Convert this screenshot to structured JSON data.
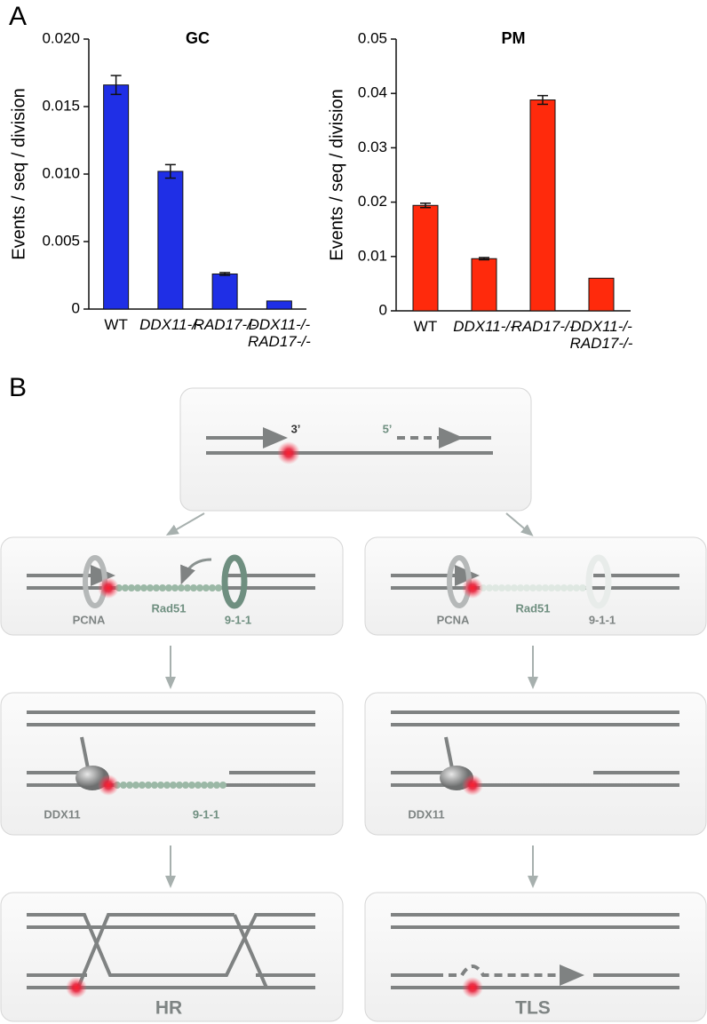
{
  "panel_labels": [
    "A",
    "B"
  ],
  "chart_data": [
    {
      "type": "bar",
      "title": "GC",
      "ylabel": "Events / seq / division",
      "categories": [
        "WT",
        "DDX11-/-",
        "RAD17-/-",
        "DDX11-/- RAD17-/-"
      ],
      "values": [
        0.0166,
        0.0102,
        0.0026,
        0.0006
      ],
      "errors": [
        0.0007,
        0.0005,
        0.0001,
        null
      ],
      "color": "#1f2fe6",
      "ylim": [
        0,
        0.02
      ],
      "yticks": [
        0,
        0.005,
        {
          "value": 0.01,
          "label": "0.010"
        },
        0.015,
        {
          "value": 0.02,
          "label": "0.020"
        }
      ]
    },
    {
      "type": "bar",
      "title": "PM",
      "ylabel": "Events / seq / division",
      "categories": [
        "WT",
        "DDX11-/-",
        "RAD17-/-",
        "DDX11-/- RAD17-/-"
      ],
      "values": [
        0.0194,
        0.0096,
        0.0388,
        0.006
      ],
      "errors": [
        0.0004,
        0.0002,
        0.0008,
        null
      ],
      "color": "#ff2a0c",
      "ylim": [
        0,
        0.05
      ],
      "yticks": [
        0,
        0.01,
        0.02,
        0.03,
        0.04,
        0.05
      ]
    }
  ],
  "diagram": {
    "top": {
      "label_3": "3’",
      "label_5": "5’"
    },
    "rad17_present": {
      "pcna": "PCNA",
      "rad51": "Rad51",
      "ring": "9-1-1"
    },
    "rad17_absent": {
      "pcna": "PCNA",
      "rad51": "Rad51",
      "ring": "9-1-1"
    },
    "ddx11_present": {
      "ddx11": "DDX11",
      "ring": "9-1-1"
    },
    "ddx11_absent": {
      "ddx11": "DDX11"
    },
    "outcomes": [
      "HR",
      "TLS"
    ]
  }
}
